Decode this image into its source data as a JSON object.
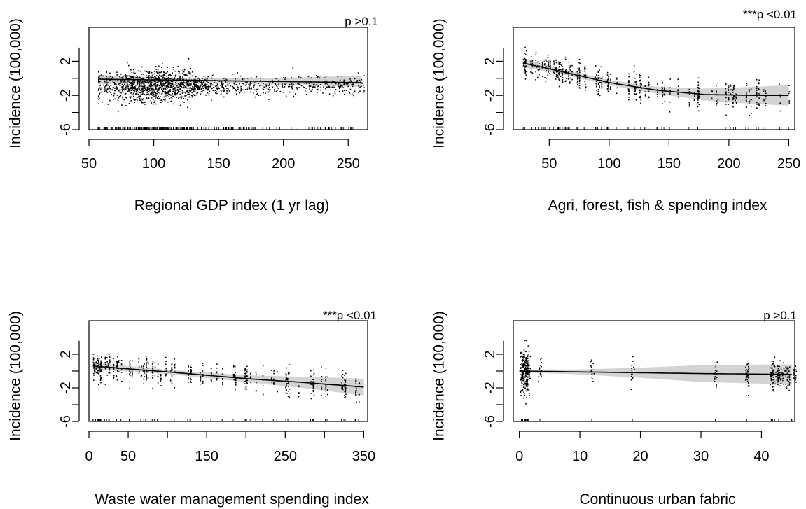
{
  "chart_data": [
    {
      "type": "scatter",
      "title": "",
      "xlabel": "Regional GDP index (1 yr lag)",
      "ylabel": "Incidence (100,000)",
      "annotation": "p >0.1",
      "xlim": [
        50,
        265
      ],
      "ylim": [
        -6,
        4
      ],
      "xticks": [
        50,
        100,
        150,
        200,
        250
      ],
      "yticks": [
        -6,
        -2,
        2
      ],
      "grid": false,
      "points": {
        "x_range": [
          57,
          262
        ],
        "x_center": 103,
        "y_center": -0.8,
        "y_spread": 1.0,
        "count": 1600
      },
      "rug_range": [
        57,
        262
      ],
      "fit": {
        "x": [
          57,
          110,
          160,
          210,
          260
        ],
        "y": [
          -0.1,
          -0.2,
          -0.3,
          -0.4,
          -0.5
        ],
        "lower": [
          -0.7,
          -0.45,
          -0.6,
          -0.8,
          -1.0
        ],
        "upper": [
          0.4,
          0.05,
          0.0,
          0.1,
          0.3
        ]
      }
    },
    {
      "type": "scatter",
      "title": "",
      "xlabel": "Agri, forest, fish & spending index",
      "ylabel": "Incidence (100,000)",
      "annotation": "***p <0.01",
      "xlim": [
        20,
        255
      ],
      "ylim": [
        -6,
        4
      ],
      "xticks": [
        50,
        100,
        150,
        200,
        250
      ],
      "yticks": [
        -6,
        -2,
        2
      ],
      "grid": false,
      "points": {
        "x_range": [
          28,
          250
        ],
        "count": 700
      },
      "rug_range": [
        28,
        250
      ],
      "fit": {
        "x": [
          28,
          60,
          100,
          140,
          180,
          220,
          250
        ],
        "y": [
          1.8,
          0.8,
          -0.5,
          -1.4,
          -1.9,
          -2.0,
          -2.0
        ],
        "lower": [
          1.3,
          0.5,
          -0.8,
          -1.8,
          -2.6,
          -3.0,
          -3.2
        ],
        "upper": [
          2.3,
          1.1,
          -0.2,
          -1.0,
          -1.2,
          -1.0,
          -0.8
        ]
      }
    },
    {
      "type": "scatter",
      "title": "",
      "xlabel": "Waste water management spending index",
      "ylabel": "Incidence (100,000)",
      "annotation": "***p <0.01",
      "xlim": [
        0,
        355
      ],
      "ylim": [
        -6,
        4
      ],
      "xticks": [
        0,
        50,
        150,
        250,
        350
      ],
      "yticks": [
        -6,
        -2,
        2
      ],
      "grid": false,
      "points": {
        "x_range": [
          5,
          350
        ],
        "count": 650
      },
      "rug_range": [
        5,
        350
      ],
      "fit": {
        "x": [
          5,
          100,
          200,
          280,
          350
        ],
        "y": [
          0.6,
          -0.1,
          -0.9,
          -1.4,
          -1.9
        ],
        "lower": [
          0.2,
          -0.35,
          -1.3,
          -2.1,
          -2.9
        ],
        "upper": [
          1.0,
          0.15,
          -0.5,
          -0.7,
          -0.9
        ]
      }
    },
    {
      "type": "scatter",
      "title": "",
      "xlabel": "Continuous urban fabric",
      "ylabel": "Incidence (100,000)",
      "annotation": "p >0.1",
      "xlim": [
        -1,
        45.5
      ],
      "ylim": [
        -6,
        4
      ],
      "xticks": [
        0,
        10,
        20,
        30,
        40
      ],
      "yticks": [
        -6,
        -2,
        2
      ],
      "grid": false,
      "points": {
        "x_range": [
          0,
          45
        ],
        "count": 550
      },
      "rug_range": [
        0,
        45
      ],
      "fit": {
        "x": [
          0,
          10,
          20,
          30,
          45
        ],
        "y": [
          0.0,
          -0.1,
          -0.2,
          -0.3,
          -0.4
        ],
        "lower": [
          -0.15,
          -0.4,
          -0.8,
          -1.3,
          -1.6
        ],
        "upper": [
          0.15,
          0.2,
          0.4,
          0.7,
          0.8
        ]
      }
    }
  ]
}
